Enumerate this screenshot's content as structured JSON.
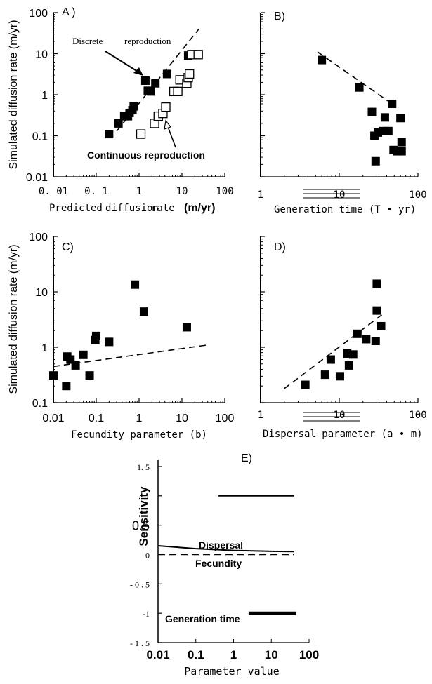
{
  "figure": {
    "ylabel_top": "Simulated diffusion rate (m/yr)",
    "ylabel_mid": "Simulated diffusion rate (m/yr)"
  },
  "chart_data": [
    {
      "id": "A",
      "type": "scatter",
      "panel_label": "A )",
      "xlabel_parts": [
        "Predicted",
        "diffusion",
        "rate",
        "(m/yr)"
      ],
      "x_scale": "log",
      "y_scale": "log",
      "xlim": [
        0.01,
        100
      ],
      "ylim": [
        0.01,
        100
      ],
      "x_ticks": [
        0.01,
        0.1,
        1,
        10,
        100
      ],
      "x_tick_labels": [
        "0. 01",
        "0. 1",
        "1",
        "10",
        "100"
      ],
      "y_ticks": [
        0.01,
        0.1,
        1,
        10,
        100
      ],
      "y_tick_labels": [
        "0.01",
        "0.1",
        "1",
        "10",
        "100"
      ],
      "series": [
        {
          "name": "Discrete reproduction",
          "marker": "filled-square",
          "points": [
            [
              0.2,
              0.11
            ],
            [
              0.33,
              0.2
            ],
            [
              0.45,
              0.3
            ],
            [
              0.55,
              0.3
            ],
            [
              0.6,
              0.36
            ],
            [
              0.7,
              0.42
            ],
            [
              0.75,
              0.52
            ],
            [
              1.4,
              2.2
            ],
            [
              1.6,
              1.25
            ],
            [
              1.9,
              1.2
            ],
            [
              2.4,
              1.9
            ],
            [
              4.5,
              3.2
            ],
            [
              14,
              9
            ]
          ]
        },
        {
          "name": "Continuous reproduction",
          "marker": "open-square",
          "points": [
            [
              1.1,
              0.11
            ],
            [
              2.3,
              0.2
            ],
            [
              2.8,
              0.3
            ],
            [
              3.6,
              0.35
            ],
            [
              4.2,
              0.5
            ],
            [
              6.5,
              1.2
            ],
            [
              8,
              1.2
            ],
            [
              9,
              2.3
            ],
            [
              13,
              1.9
            ],
            [
              14,
              2.6
            ],
            [
              15,
              3.2
            ],
            [
              17,
              9.5
            ],
            [
              24,
              9.5
            ]
          ]
        }
      ],
      "fit_lines": [
        {
          "style": "dashed",
          "from": [
            0.3,
            0.13
          ],
          "to": [
            25,
            40
          ]
        }
      ],
      "annotations": [
        {
          "text": "Discrete",
          "font": "mono"
        },
        {
          "text": "reproduction",
          "font": "mono"
        },
        {
          "text": "Continuous reproduction",
          "font": "sans"
        }
      ]
    },
    {
      "id": "B",
      "type": "scatter",
      "panel_label": "B)",
      "xlabel": "Generation time (T • yr)",
      "x_scale": "log",
      "y_scale": "log",
      "xlim": [
        1,
        100
      ],
      "ylim": [
        0.01,
        100
      ],
      "x_ticks": [
        1,
        10,
        100
      ],
      "x_tick_labels": [
        "1",
        "10",
        "100"
      ],
      "series": [
        {
          "name": "",
          "marker": "filled-square",
          "points": [
            [
              6,
              7
            ],
            [
              18,
              1.5
            ],
            [
              26,
              0.38
            ],
            [
              28,
              0.1
            ],
            [
              29,
              0.024
            ],
            [
              31,
              0.12
            ],
            [
              36,
              0.13
            ],
            [
              38,
              0.28
            ],
            [
              42,
              0.13
            ],
            [
              47,
              0.6
            ],
            [
              49,
              0.045
            ],
            [
              55,
              0.042
            ],
            [
              60,
              0.27
            ],
            [
              62,
              0.07
            ],
            [
              62,
              0.042
            ]
          ]
        }
      ],
      "fit_lines": [
        {
          "style": "dashed",
          "from": [
            5.3,
            11
          ],
          "to": [
            50,
            0.55
          ]
        }
      ]
    },
    {
      "id": "C",
      "type": "scatter",
      "panel_label": "C)",
      "xlabel": "Fecundity parameter (b)",
      "x_scale": "log",
      "y_scale": "log",
      "xlim": [
        0.01,
        100
      ],
      "ylim": [
        0.1,
        100
      ],
      "x_ticks": [
        0.01,
        0.1,
        1,
        10,
        100
      ],
      "x_tick_labels": [
        "0.01",
        "0.1",
        "1",
        "10",
        "100"
      ],
      "y_ticks": [
        0.1,
        1,
        10,
        100
      ],
      "y_tick_labels": [
        "0.1",
        "1",
        "10",
        "100"
      ],
      "series": [
        {
          "name": "",
          "marker": "filled-square",
          "points": [
            [
              0.01,
              0.31
            ],
            [
              0.02,
              0.2
            ],
            [
              0.021,
              0.68
            ],
            [
              0.025,
              0.6
            ],
            [
              0.033,
              0.47
            ],
            [
              0.05,
              0.73
            ],
            [
              0.07,
              0.31
            ],
            [
              0.095,
              1.35
            ],
            [
              0.1,
              1.6
            ],
            [
              0.2,
              1.25
            ],
            [
              0.8,
              13.5
            ],
            [
              1.3,
              4.4
            ],
            [
              13,
              2.3
            ]
          ]
        }
      ],
      "fit_lines": [
        {
          "style": "dashed",
          "from": [
            0.01,
            0.45
          ],
          "to": [
            40,
            1.1
          ]
        }
      ]
    },
    {
      "id": "D",
      "type": "scatter",
      "panel_label": "D)",
      "xlabel": "Dispersal parameter (a • m)",
      "x_scale": "log",
      "y_scale": "log",
      "xlim": [
        1,
        100
      ],
      "ylim": [
        0.1,
        100
      ],
      "x_ticks": [
        1,
        10,
        100
      ],
      "x_tick_labels": [
        "1",
        "10",
        "100"
      ],
      "series": [
        {
          "name": "",
          "marker": "filled-square",
          "points": [
            [
              3.7,
              0.21
            ],
            [
              6.6,
              0.32
            ],
            [
              7.8,
              0.6
            ],
            [
              10.2,
              0.3
            ],
            [
              12.6,
              0.77
            ],
            [
              13.3,
              0.47
            ],
            [
              15,
              0.74
            ],
            [
              17,
              1.75
            ],
            [
              22,
              1.4
            ],
            [
              29,
              1.3
            ],
            [
              30,
              14
            ],
            [
              30,
              4.6
            ],
            [
              34,
              2.4
            ]
          ]
        }
      ],
      "fit_lines": [
        {
          "style": "dashed",
          "from": [
            2,
            0.18
          ],
          "to": [
            36,
            4
          ]
        }
      ]
    },
    {
      "id": "E",
      "type": "line",
      "panel_label": "E)",
      "xlabel": "Parameter value",
      "ylabel": "Sensitivity",
      "x_scale": "log",
      "xlim": [
        0.01,
        100
      ],
      "ylim": [
        -1.5,
        1.5
      ],
      "x_tick_labels": [
        "0.01",
        "0.1",
        "1",
        "10",
        "100"
      ],
      "y_ticks": [
        -1.5,
        -1,
        -0.5,
        0,
        0.5,
        1,
        1.5
      ],
      "y_tick_labels": [
        "- 1 . 5",
        "-1",
        "- 0 . 5",
        "0",
        "0.5",
        "1",
        "1. 5"
      ],
      "series": [
        {
          "name": "Dispersal",
          "style": "solid",
          "x": [
            0.4,
            40
          ],
          "y": [
            1,
            1
          ]
        },
        {
          "name": "Fecundity",
          "style": "solid",
          "x": [
            0.01,
            0.1,
            1,
            10,
            40
          ],
          "y": [
            0.15,
            0.1,
            0.07,
            0.055,
            0.05
          ]
        },
        {
          "name": "",
          "style": "dashed",
          "x": [
            0.01,
            40
          ],
          "y": [
            0,
            0
          ]
        },
        {
          "name": "Generation time",
          "style": "thick",
          "x": [
            2.5,
            45
          ],
          "y": [
            -1,
            -1
          ]
        }
      ]
    }
  ]
}
